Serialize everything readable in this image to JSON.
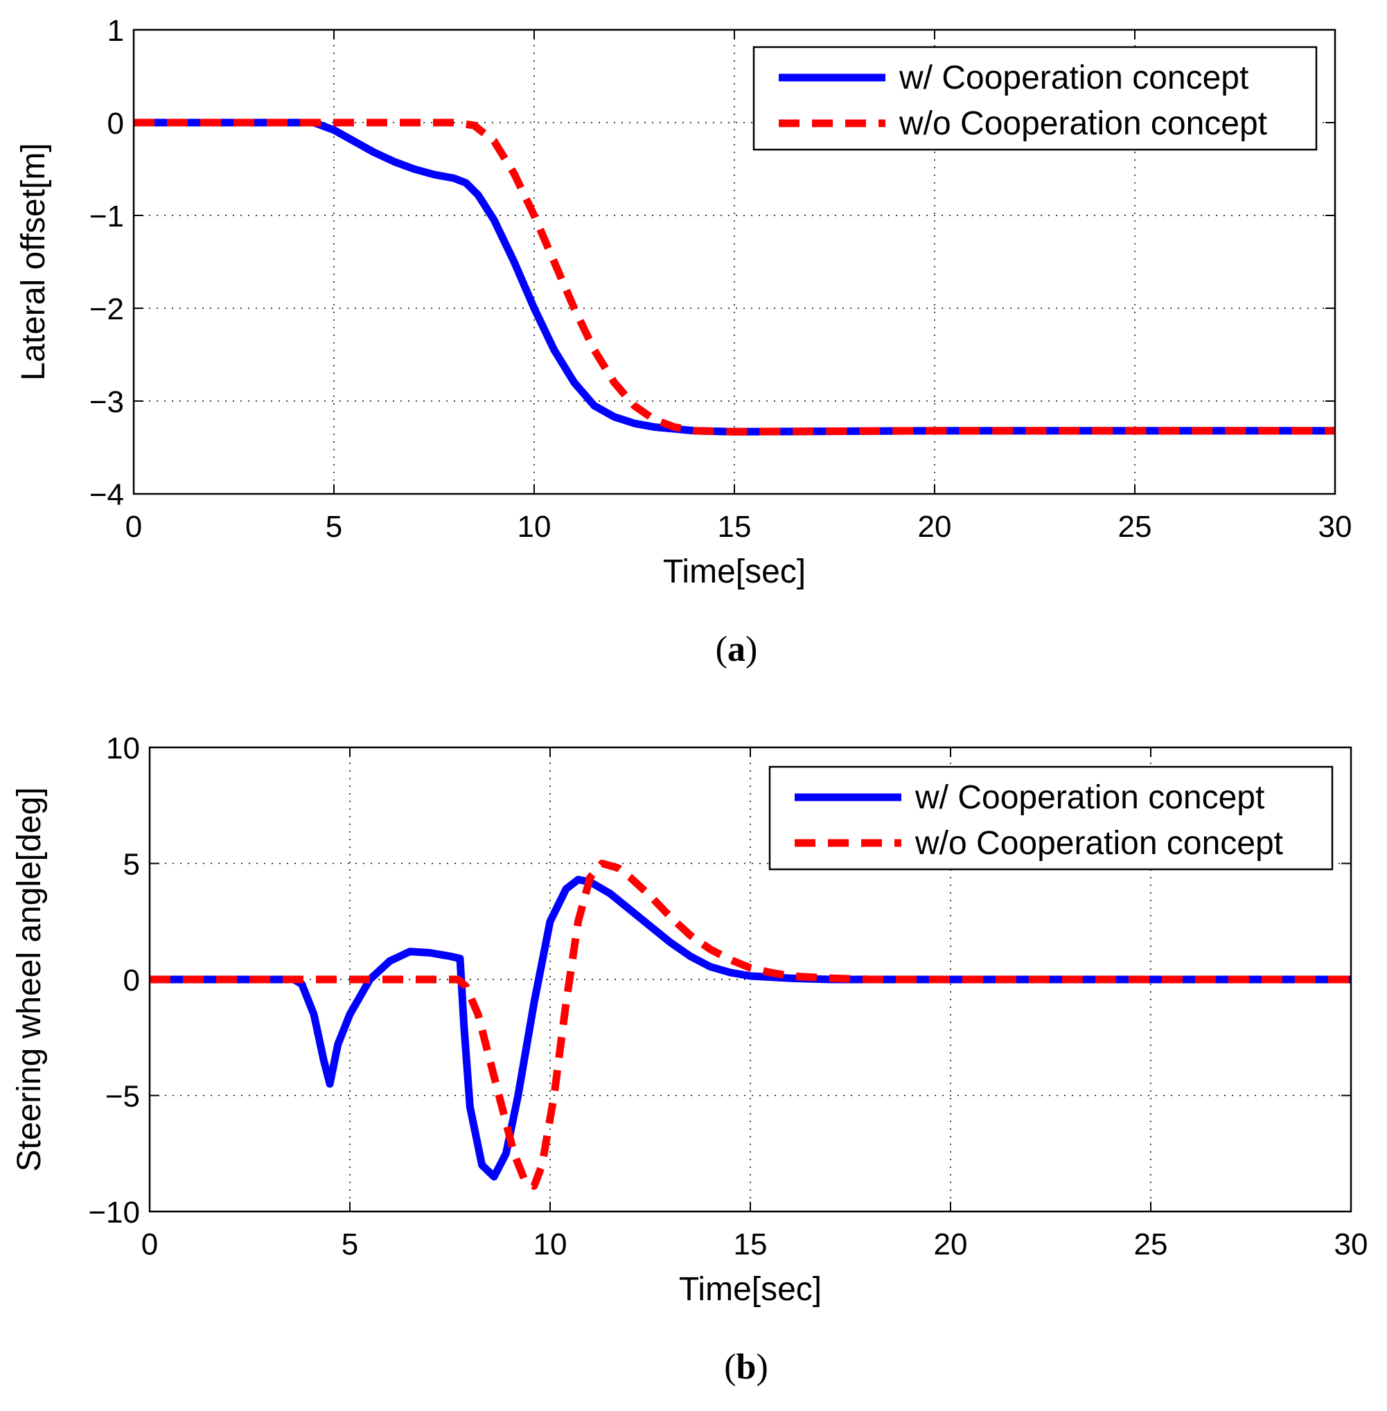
{
  "chart_data": [
    {
      "type": "line",
      "caption_open": "(",
      "caption_letter": "a",
      "caption_close": ")",
      "xlabel": "Time[sec]",
      "ylabel": "Lateral offset[m]",
      "xlim": [
        0,
        30
      ],
      "ylim": [
        -4,
        1
      ],
      "xticks": [
        0,
        5,
        10,
        15,
        20,
        25,
        30
      ],
      "yticks": [
        -4,
        -3,
        -2,
        -1,
        0,
        1
      ],
      "ytick_labels": [
        "−4",
        "−3",
        "−2",
        "−1",
        "0",
        "1"
      ],
      "grid": true,
      "legend_position": "top-right",
      "series": [
        {
          "name": "w/ Cooperation concept",
          "color": "#0000ff",
          "style": "solid",
          "x": [
            0,
            4.5,
            5,
            5.5,
            6,
            6.5,
            7,
            7.5,
            8,
            8.3,
            8.6,
            9,
            9.5,
            10,
            10.5,
            11,
            11.5,
            12,
            12.5,
            13,
            13.5,
            14,
            15,
            20,
            30
          ],
          "y": [
            0,
            0,
            -0.08,
            -0.2,
            -0.32,
            -0.42,
            -0.5,
            -0.56,
            -0.6,
            -0.65,
            -0.78,
            -1.05,
            -1.5,
            -2.0,
            -2.45,
            -2.8,
            -3.05,
            -3.17,
            -3.24,
            -3.28,
            -3.3,
            -3.32,
            -3.33,
            -3.32,
            -3.32
          ]
        },
        {
          "name": "w/o Cooperation concept",
          "color": "#ff0000",
          "style": "dashed",
          "x": [
            0,
            8,
            8.5,
            9,
            9.5,
            10,
            10.5,
            11,
            11.5,
            12,
            12.5,
            13,
            13.5,
            14,
            15,
            20,
            30
          ],
          "y": [
            0,
            0,
            -0.03,
            -0.2,
            -0.55,
            -1.0,
            -1.5,
            -2.0,
            -2.45,
            -2.8,
            -3.05,
            -3.2,
            -3.28,
            -3.32,
            -3.33,
            -3.32,
            -3.32
          ]
        }
      ]
    },
    {
      "type": "line",
      "caption_open": "(",
      "caption_letter": "b",
      "caption_close": ")",
      "xlabel": "Time[sec]",
      "ylabel": "Steering wheel angle[deg]",
      "xlim": [
        0,
        30
      ],
      "ylim": [
        -10,
        10
      ],
      "xticks": [
        0,
        5,
        10,
        15,
        20,
        25,
        30
      ],
      "yticks": [
        -10,
        -5,
        0,
        5,
        10
      ],
      "ytick_labels": [
        "−10",
        "−5",
        "0",
        "5",
        "10"
      ],
      "grid": true,
      "legend_position": "top-right",
      "series": [
        {
          "name": "w/ Cooperation concept",
          "color": "#0000ff",
          "style": "solid",
          "x": [
            0,
            3.6,
            3.8,
            4.1,
            4.35,
            4.5,
            4.7,
            5.0,
            5.5,
            6.0,
            6.5,
            7.0,
            7.5,
            7.75,
            7.85,
            8.0,
            8.3,
            8.6,
            8.9,
            9.2,
            9.6,
            10.0,
            10.4,
            10.7,
            11.0,
            11.5,
            12.0,
            12.5,
            13.0,
            13.5,
            14.0,
            14.5,
            15.0,
            16,
            17,
            18,
            20,
            30
          ],
          "y": [
            0,
            0,
            -0.2,
            -1.5,
            -3.5,
            -4.5,
            -2.8,
            -1.5,
            0.0,
            0.8,
            1.2,
            1.15,
            1.0,
            0.9,
            -2.0,
            -5.5,
            -8.0,
            -8.5,
            -7.5,
            -5.0,
            -1.0,
            2.5,
            3.9,
            4.3,
            4.2,
            3.7,
            3.0,
            2.3,
            1.6,
            1.0,
            0.55,
            0.3,
            0.15,
            0.05,
            0.0,
            0.0,
            0.0,
            0.0
          ]
        },
        {
          "name": "w/o Cooperation concept",
          "color": "#ff0000",
          "style": "dashed",
          "x": [
            0,
            7.7,
            7.9,
            8.2,
            8.5,
            8.8,
            9.1,
            9.4,
            9.6,
            9.8,
            10.1,
            10.4,
            10.7,
            11.0,
            11.3,
            11.7,
            12.0,
            12.5,
            13.0,
            13.5,
            14.0,
            14.5,
            15.0,
            15.5,
            16.0,
            17,
            18,
            20,
            30
          ],
          "y": [
            0,
            0,
            -0.3,
            -1.5,
            -3.5,
            -5.5,
            -7.5,
            -8.8,
            -8.9,
            -8.0,
            -5.0,
            -1.0,
            2.5,
            4.4,
            5.0,
            4.8,
            4.4,
            3.6,
            2.7,
            1.9,
            1.3,
            0.85,
            0.5,
            0.3,
            0.15,
            0.05,
            0.0,
            0.0,
            0.0
          ]
        }
      ]
    }
  ]
}
